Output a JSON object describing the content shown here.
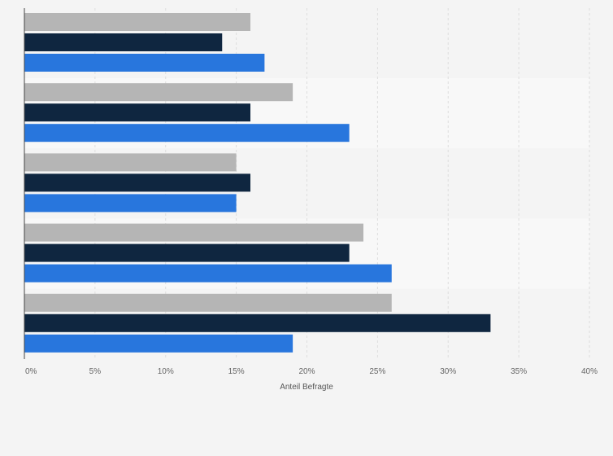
{
  "chart_data": {
    "type": "bar",
    "orientation": "horizontal",
    "categories": [
      "",
      "",
      "",
      "",
      ""
    ],
    "series": [
      {
        "values": [
          16,
          19,
          15,
          24,
          26
        ],
        "color": "#b5b5b5"
      },
      {
        "values": [
          14,
          16,
          16,
          23,
          33
        ],
        "color": "#0f2640"
      },
      {
        "values": [
          17,
          23,
          15,
          26,
          19
        ],
        "color": "#2876dd"
      }
    ],
    "xlim": [
      0,
      40
    ],
    "xticks": [
      "0%",
      "5%",
      "10%",
      "15%",
      "20%",
      "25%",
      "30%",
      "35%",
      "40%"
    ],
    "xlabel": "Anteil Befragte",
    "grid": true,
    "colors": {
      "background": "#f4f4f4",
      "band_alt": "#f8f8f8",
      "grid": "#dddddd",
      "axis": "#444444"
    }
  }
}
